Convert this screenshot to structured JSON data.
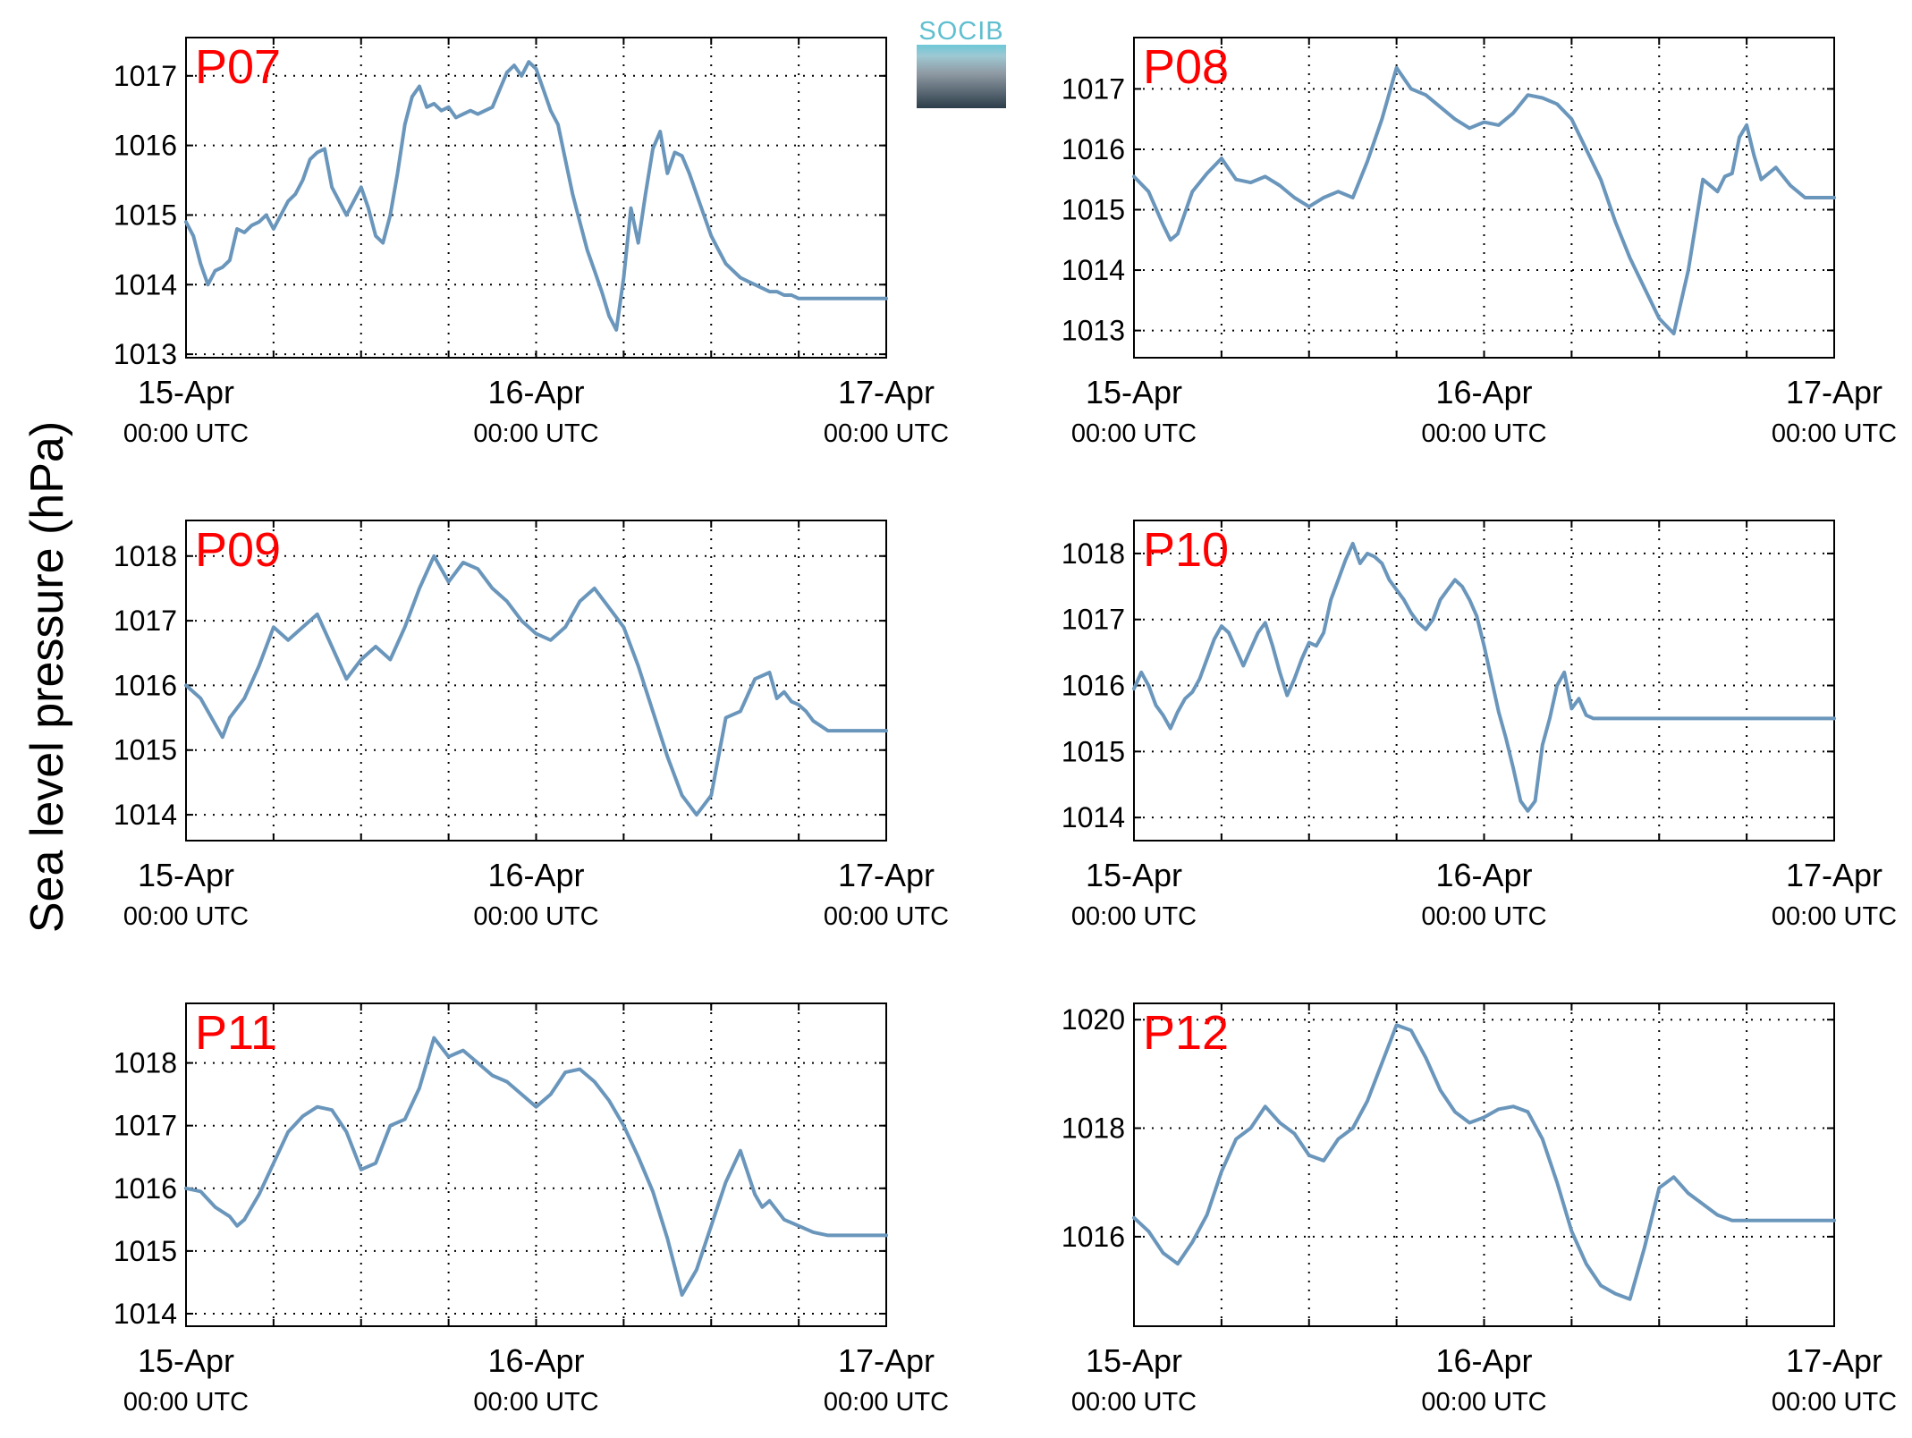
{
  "figure": {
    "ylabel": "Sea level pressure (hPa)",
    "logo_text": "SOCIB",
    "line_color": "#6a96bc",
    "station_label_color": "#ff0000"
  },
  "chart_data": [
    {
      "type": "line",
      "title": "P07",
      "x_ticks": [
        {
          "label": "15-Apr",
          "sublabel": "00:00 UTC",
          "value": 0
        },
        {
          "label": "16-Apr",
          "sublabel": "00:00 UTC",
          "value": 24
        },
        {
          "label": "17-Apr",
          "sublabel": "00:00 UTC",
          "value": 48
        }
      ],
      "x_unit": "hours since 15-Apr 00:00 UTC",
      "xlim": [
        0,
        48
      ],
      "yticks": [
        1013,
        1014,
        1015,
        1016,
        1017
      ],
      "ylim": [
        1012.95,
        1017.55
      ],
      "grid": true,
      "series": [
        {
          "x": [
            0,
            0.5,
            1,
            1.5,
            2,
            2.5,
            3,
            3.5,
            4,
            4.5,
            5,
            5.5,
            6,
            6.5,
            7,
            7.5,
            8,
            8.5,
            9,
            9.5,
            10,
            10.5,
            11,
            11.5,
            12,
            12.5,
            13,
            13.5,
            14,
            14.5,
            15,
            15.5,
            16,
            16.5,
            17,
            17.5,
            18,
            18.5,
            19,
            19.5,
            20,
            20.5,
            21,
            21.5,
            22,
            22.5,
            23,
            23.5,
            24,
            24.5,
            25,
            25.5,
            26,
            26.5,
            27,
            27.5,
            28,
            28.5,
            29,
            29.5,
            30,
            30.5,
            31,
            31.5,
            32,
            32.5,
            33,
            33.5,
            34,
            34.5,
            35,
            35.5,
            36,
            36.5,
            37,
            37.5,
            38,
            38.5,
            39,
            39.5,
            40,
            40.5,
            41,
            41.5,
            42,
            42.5,
            43,
            43.5,
            44,
            44.5,
            45,
            45.5,
            46,
            46.5,
            47,
            47.5,
            48
          ],
          "y": [
            1014.9,
            1014.7,
            1014.3,
            1014.0,
            1014.2,
            1014.25,
            1014.35,
            1014.8,
            1014.75,
            1014.85,
            1014.9,
            1015.0,
            1014.8,
            1015.0,
            1015.2,
            1015.3,
            1015.5,
            1015.8,
            1015.9,
            1015.95,
            1015.4,
            1015.2,
            1015.0,
            1015.2,
            1015.4,
            1015.1,
            1014.7,
            1014.6,
            1015.0,
            1015.6,
            1016.3,
            1016.7,
            1016.85,
            1016.55,
            1016.6,
            1016.5,
            1016.55,
            1016.4,
            1016.45,
            1016.5,
            1016.45,
            1016.5,
            1016.55,
            1016.8,
            1017.05,
            1017.15,
            1017.0,
            1017.2,
            1017.1,
            1016.8,
            1016.5,
            1016.3,
            1015.8,
            1015.3,
            1014.9,
            1014.5,
            1014.2,
            1013.9,
            1013.55,
            1013.35,
            1014.1,
            1015.1,
            1014.6,
            1015.3,
            1015.95,
            1016.2,
            1015.6,
            1015.9,
            1015.85,
            1015.6,
            1015.3,
            1015.0,
            1014.7,
            1014.5,
            1014.3,
            1014.2,
            1014.1,
            1014.05,
            1014.0,
            1013.95,
            1013.9,
            1013.9,
            1013.85,
            1013.85,
            1013.8,
            1013.8,
            1013.8,
            1013.8,
            1013.8,
            1013.8,
            1013.8,
            1013.8,
            1013.8,
            1013.8,
            1013.8,
            1013.8,
            1013.8
          ]
        }
      ]
    },
    {
      "type": "line",
      "title": "P08",
      "x_ticks": [
        {
          "label": "15-Apr",
          "sublabel": "00:00 UTC",
          "value": 0
        },
        {
          "label": "16-Apr",
          "sublabel": "00:00 UTC",
          "value": 24
        },
        {
          "label": "17-Apr",
          "sublabel": "00:00 UTC",
          "value": 48
        }
      ],
      "x_unit": "hours since 15-Apr 00:00 UTC",
      "xlim": [
        0,
        48
      ],
      "yticks": [
        1013,
        1014,
        1015,
        1016,
        1017
      ],
      "ylim": [
        1012.55,
        1017.85
      ],
      "grid": true,
      "series": [
        {
          "x": [
            0,
            1,
            2,
            2.5,
            3,
            4,
            5,
            6,
            7,
            8,
            9,
            10,
            11,
            12,
            13,
            14,
            15,
            16,
            17,
            18,
            19,
            20,
            21,
            22,
            23,
            24,
            25,
            26,
            27,
            28,
            29,
            30,
            31,
            32,
            33,
            34,
            35,
            36,
            37,
            38,
            39,
            40,
            40.5,
            41,
            41.5,
            42,
            42.5,
            43,
            44,
            45,
            45.5,
            46,
            47,
            48
          ],
          "y": [
            1015.55,
            1015.3,
            1014.75,
            1014.5,
            1014.6,
            1015.3,
            1015.6,
            1015.85,
            1015.5,
            1015.45,
            1015.55,
            1015.4,
            1015.2,
            1015.05,
            1015.2,
            1015.3,
            1015.2,
            1015.8,
            1016.5,
            1017.35,
            1017.0,
            1016.9,
            1016.7,
            1016.5,
            1016.35,
            1016.45,
            1016.4,
            1016.6,
            1016.9,
            1016.85,
            1016.75,
            1016.5,
            1016.0,
            1015.5,
            1014.8,
            1014.2,
            1013.7,
            1013.2,
            1012.95,
            1014.0,
            1015.5,
            1015.3,
            1015.55,
            1015.6,
            1016.2,
            1016.4,
            1015.9,
            1015.5,
            1015.7,
            1015.4,
            1015.3,
            1015.2,
            1015.2,
            1015.2
          ]
        }
      ]
    },
    {
      "type": "line",
      "title": "P09",
      "x_ticks": [
        {
          "label": "15-Apr",
          "sublabel": "00:00 UTC",
          "value": 0
        },
        {
          "label": "16-Apr",
          "sublabel": "00:00 UTC",
          "value": 24
        },
        {
          "label": "17-Apr",
          "sublabel": "00:00 UTC",
          "value": 48
        }
      ],
      "x_unit": "hours since 15-Apr 00:00 UTC",
      "xlim": [
        0,
        48
      ],
      "yticks": [
        1014,
        1015,
        1016,
        1017,
        1018
      ],
      "ylim": [
        1013.6,
        1018.55
      ],
      "grid": true,
      "series": [
        {
          "x": [
            0,
            1,
            2,
            2.5,
            3,
            4,
            5,
            6,
            7,
            8,
            9,
            10,
            11,
            12,
            13,
            14,
            15,
            16,
            17,
            18,
            19,
            20,
            21,
            22,
            23,
            24,
            25,
            26,
            27,
            28,
            29,
            30,
            31,
            32,
            33,
            34,
            35,
            36,
            37,
            38,
            39,
            40,
            40.5,
            41,
            41.5,
            42,
            42.5,
            43,
            44,
            45,
            45.5,
            46,
            47,
            48
          ],
          "y": [
            1016.0,
            1015.8,
            1015.4,
            1015.2,
            1015.5,
            1015.8,
            1016.3,
            1016.9,
            1016.7,
            1016.9,
            1017.1,
            1016.6,
            1016.1,
            1016.4,
            1016.6,
            1016.4,
            1016.9,
            1017.5,
            1018.0,
            1017.6,
            1017.9,
            1017.8,
            1017.5,
            1017.3,
            1017.0,
            1016.8,
            1016.7,
            1016.9,
            1017.3,
            1017.5,
            1017.2,
            1016.9,
            1016.3,
            1015.6,
            1014.9,
            1014.3,
            1014.0,
            1014.3,
            1015.5,
            1015.6,
            1016.1,
            1016.2,
            1015.8,
            1015.9,
            1015.75,
            1015.7,
            1015.6,
            1015.45,
            1015.3,
            1015.3,
            1015.3,
            1015.3,
            1015.3,
            1015.3
          ]
        }
      ]
    },
    {
      "type": "line",
      "title": "P10",
      "x_ticks": [
        {
          "label": "15-Apr",
          "sublabel": "00:00 UTC",
          "value": 0
        },
        {
          "label": "16-Apr",
          "sublabel": "00:00 UTC",
          "value": 24
        },
        {
          "label": "17-Apr",
          "sublabel": "00:00 UTC",
          "value": 48
        }
      ],
      "x_unit": "hours since 15-Apr 00:00 UTC",
      "xlim": [
        0,
        48
      ],
      "yticks": [
        1014,
        1015,
        1016,
        1017,
        1018
      ],
      "ylim": [
        1013.65,
        1018.5
      ],
      "grid": true,
      "series": [
        {
          "x": [
            0,
            0.5,
            1,
            1.5,
            2,
            2.5,
            3,
            3.5,
            4,
            4.5,
            5,
            5.5,
            6,
            6.5,
            7,
            7.5,
            8,
            8.5,
            9,
            9.5,
            10,
            10.5,
            11,
            11.5,
            12,
            12.5,
            13,
            13.5,
            14,
            14.5,
            15,
            15.5,
            16,
            16.5,
            17,
            17.5,
            18,
            18.5,
            19,
            19.5,
            20,
            20.5,
            21,
            21.5,
            22,
            22.5,
            23,
            23.5,
            24,
            24.5,
            25,
            25.5,
            26,
            26.5,
            27,
            27.5,
            28,
            28.5,
            29,
            29.5,
            30,
            30.5,
            31,
            31.5,
            32,
            32.5,
            33,
            33.5,
            34,
            34.5,
            35,
            35.5,
            36,
            36.5,
            37,
            37.5,
            38,
            38.5,
            39,
            39.5,
            40,
            40.5,
            41,
            41.5,
            42,
            42.5,
            43,
            43.5,
            44,
            44.5,
            45,
            45.5,
            46,
            46.5,
            47,
            47.5,
            48
          ],
          "y": [
            1015.95,
            1016.2,
            1016.0,
            1015.7,
            1015.55,
            1015.35,
            1015.6,
            1015.8,
            1015.9,
            1016.1,
            1016.4,
            1016.7,
            1016.9,
            1016.8,
            1016.55,
            1016.3,
            1016.55,
            1016.8,
            1016.95,
            1016.6,
            1016.2,
            1015.85,
            1016.1,
            1016.4,
            1016.65,
            1016.6,
            1016.8,
            1017.3,
            1017.6,
            1017.9,
            1018.15,
            1017.85,
            1018.0,
            1017.95,
            1017.85,
            1017.6,
            1017.45,
            1017.3,
            1017.1,
            1016.95,
            1016.85,
            1017.0,
            1017.3,
            1017.45,
            1017.6,
            1017.5,
            1017.3,
            1017.05,
            1016.6,
            1016.1,
            1015.6,
            1015.2,
            1014.75,
            1014.25,
            1014.1,
            1014.25,
            1015.1,
            1015.5,
            1016.0,
            1016.2,
            1015.65,
            1015.8,
            1015.55,
            1015.5,
            1015.5,
            1015.5,
            1015.5,
            1015.5,
            1015.5,
            1015.5,
            1015.5,
            1015.5,
            1015.5,
            1015.5,
            1015.5,
            1015.5,
            1015.5,
            1015.5,
            1015.5,
            1015.5,
            1015.5,
            1015.5,
            1015.5,
            1015.5,
            1015.5,
            1015.5,
            1015.5,
            1015.5,
            1015.5,
            1015.5,
            1015.5,
            1015.5,
            1015.5,
            1015.5,
            1015.5,
            1015.5,
            1015.5
          ]
        }
      ]
    },
    {
      "type": "line",
      "title": "P11",
      "x_ticks": [
        {
          "label": "15-Apr",
          "sublabel": "00:00 UTC",
          "value": 0
        },
        {
          "label": "16-Apr",
          "sublabel": "00:00 UTC",
          "value": 24
        },
        {
          "label": "17-Apr",
          "sublabel": "00:00 UTC",
          "value": 48
        }
      ],
      "x_unit": "hours since 15-Apr 00:00 UTC",
      "xlim": [
        0,
        48
      ],
      "yticks": [
        1014,
        1015,
        1016,
        1017,
        1018
      ],
      "ylim": [
        1013.8,
        1018.95
      ],
      "grid": true,
      "series": [
        {
          "x": [
            0,
            1,
            2,
            3,
            3.5,
            4,
            5,
            6,
            7,
            8,
            9,
            10,
            11,
            12,
            13,
            14,
            15,
            16,
            17,
            18,
            19,
            20,
            21,
            22,
            23,
            24,
            25,
            26,
            27,
            28,
            29,
            30,
            31,
            32,
            33,
            34,
            35,
            36,
            37,
            38,
            39,
            39.5,
            40,
            41,
            42,
            43,
            44,
            45,
            45.5,
            46,
            47,
            48
          ],
          "y": [
            1016.0,
            1015.95,
            1015.7,
            1015.55,
            1015.4,
            1015.5,
            1015.9,
            1016.4,
            1016.9,
            1017.15,
            1017.3,
            1017.25,
            1016.9,
            1016.3,
            1016.4,
            1017.0,
            1017.1,
            1017.6,
            1018.4,
            1018.1,
            1018.2,
            1018.0,
            1017.8,
            1017.7,
            1017.5,
            1017.3,
            1017.5,
            1017.85,
            1017.9,
            1017.7,
            1017.4,
            1017.0,
            1016.5,
            1015.95,
            1015.2,
            1014.3,
            1014.7,
            1015.4,
            1016.1,
            1016.6,
            1015.9,
            1015.7,
            1015.8,
            1015.5,
            1015.4,
            1015.3,
            1015.25,
            1015.25,
            1015.25,
            1015.25,
            1015.25,
            1015.25
          ]
        }
      ]
    },
    {
      "type": "line",
      "title": "P12",
      "x_ticks": [
        {
          "label": "15-Apr",
          "sublabel": "00:00 UTC",
          "value": 0
        },
        {
          "label": "16-Apr",
          "sublabel": "00:00 UTC",
          "value": 24
        },
        {
          "label": "17-Apr",
          "sublabel": "00:00 UTC",
          "value": 48
        }
      ],
      "x_unit": "hours since 15-Apr 00:00 UTC",
      "xlim": [
        0,
        48
      ],
      "yticks": [
        1016,
        1018,
        1020
      ],
      "ylim": [
        1014.35,
        1020.3
      ],
      "grid": true,
      "series": [
        {
          "x": [
            0,
            1,
            2,
            3,
            4,
            5,
            6,
            7,
            8,
            9,
            10,
            11,
            12,
            13,
            14,
            15,
            16,
            17,
            18,
            19,
            20,
            21,
            22,
            23,
            24,
            25,
            26,
            27,
            28,
            29,
            30,
            31,
            32,
            33,
            34,
            35,
            36,
            37,
            38,
            39,
            40,
            41,
            42,
            43,
            44,
            45,
            46,
            47,
            48
          ],
          "y": [
            1016.35,
            1016.1,
            1015.7,
            1015.5,
            1015.9,
            1016.4,
            1017.2,
            1017.8,
            1018.0,
            1018.4,
            1018.1,
            1017.9,
            1017.5,
            1017.4,
            1017.8,
            1018.0,
            1018.5,
            1019.2,
            1019.9,
            1019.8,
            1019.3,
            1018.7,
            1018.3,
            1018.1,
            1018.2,
            1018.35,
            1018.4,
            1018.3,
            1017.8,
            1017.0,
            1016.1,
            1015.5,
            1015.1,
            1014.95,
            1014.85,
            1015.8,
            1016.9,
            1017.1,
            1016.8,
            1016.6,
            1016.4,
            1016.3,
            1016.3,
            1016.3,
            1016.3,
            1016.3,
            1016.3,
            1016.3,
            1016.3
          ]
        }
      ]
    }
  ]
}
